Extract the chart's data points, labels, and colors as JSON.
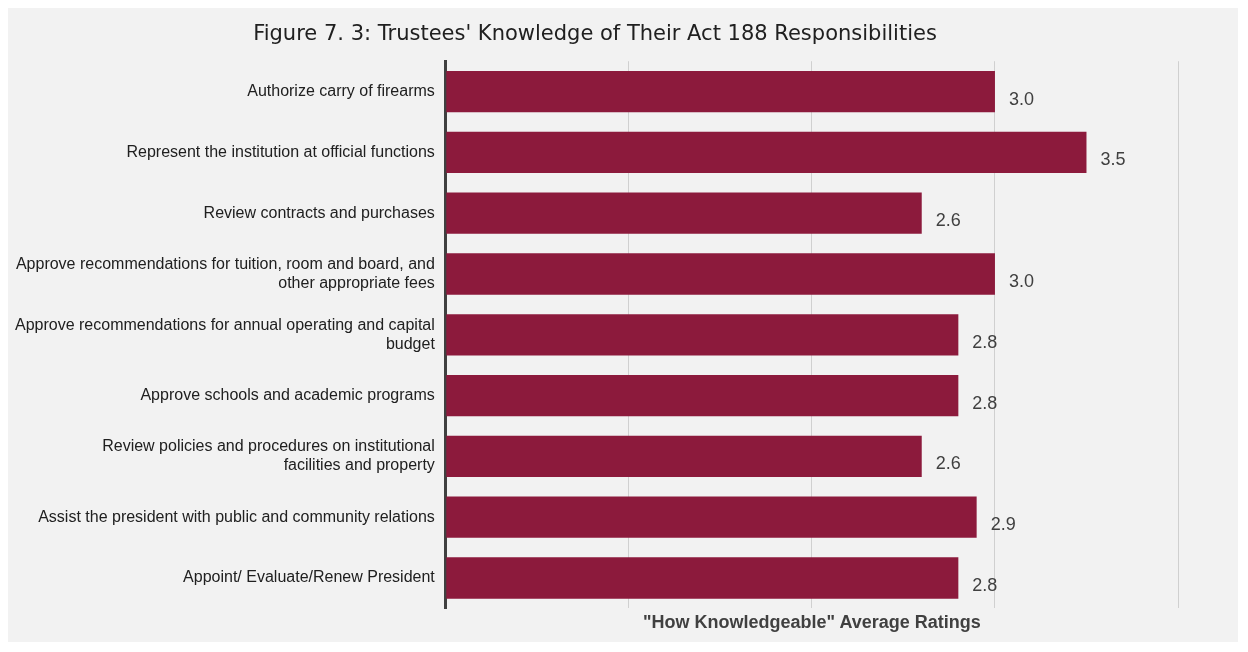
{
  "chart_data": {
    "type": "bar",
    "orientation": "horizontal",
    "title": "Figure 7. 3: Trustees' Knowledge of Their Act 188 Responsibilities",
    "xlabel": "\"How Knowledgeable\" Average Ratings",
    "categories": [
      "Authorize carry of firearms",
      "Represent the institution at official functions",
      "Review contracts and purchases",
      "Approve recommendations for tuition, room and board, and other appropriate fees",
      "Approve recommendations for annual operating and capital budget",
      "Approve schools and academic programs",
      "Review policies and procedures on institutional facilities and property",
      "Assist the president with public and community relations",
      "Appoint/ Evaluate/Renew President"
    ],
    "values": [
      3.0,
      3.5,
      2.6,
      3.0,
      2.8,
      2.8,
      2.6,
      2.9,
      2.8
    ],
    "value_labels": [
      "3.0",
      "3.5",
      "2.6",
      "3.0",
      "2.8",
      "2.8",
      "2.6",
      "2.9",
      "2.8"
    ],
    "color": "#8c1a3c",
    "xlim": [
      0,
      4
    ],
    "xticks": [
      0,
      1,
      2,
      3,
      4
    ],
    "grid": "x",
    "tick_labels": "y"
  }
}
